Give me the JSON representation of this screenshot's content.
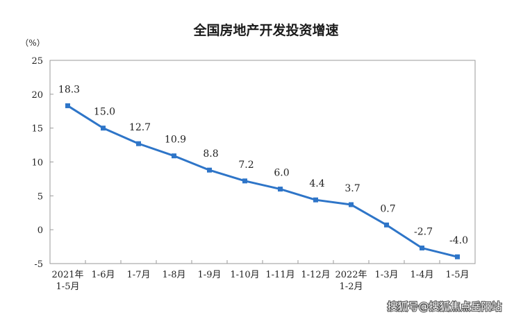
{
  "watermark": "搜狐号@搜狐焦点岳阳站",
  "chart_data": {
    "type": "line",
    "title": "全国房地产开发投资增速",
    "y_unit": "（%）",
    "ylim": [
      -5,
      25
    ],
    "yticks": [
      25,
      20,
      15,
      10,
      5,
      0,
      -5
    ],
    "categories": [
      [
        "2021年",
        "1-5月"
      ],
      [
        "1-6月"
      ],
      [
        "1-7月"
      ],
      [
        "1-8月"
      ],
      [
        "1-9月"
      ],
      [
        "1-10月"
      ],
      [
        "1-11月"
      ],
      [
        "1-12月"
      ],
      [
        "2022年",
        "1-2月"
      ],
      [
        "1-3月"
      ],
      [
        "1-4月"
      ],
      [
        "1-5月"
      ]
    ],
    "series": [
      {
        "values": [
          18.3,
          15.0,
          12.7,
          10.9,
          8.8,
          7.2,
          6.0,
          4.4,
          3.7,
          0.7,
          -2.7,
          -4.0
        ],
        "labels": [
          "18.3",
          "15.0",
          "12.7",
          "10.9",
          "8.8",
          "7.2",
          "6.0",
          "4.4",
          "3.7",
          "0.7",
          "-2.7",
          "-4.0"
        ],
        "color": "#2e75c8"
      }
    ],
    "grid": false,
    "legend": "none"
  }
}
